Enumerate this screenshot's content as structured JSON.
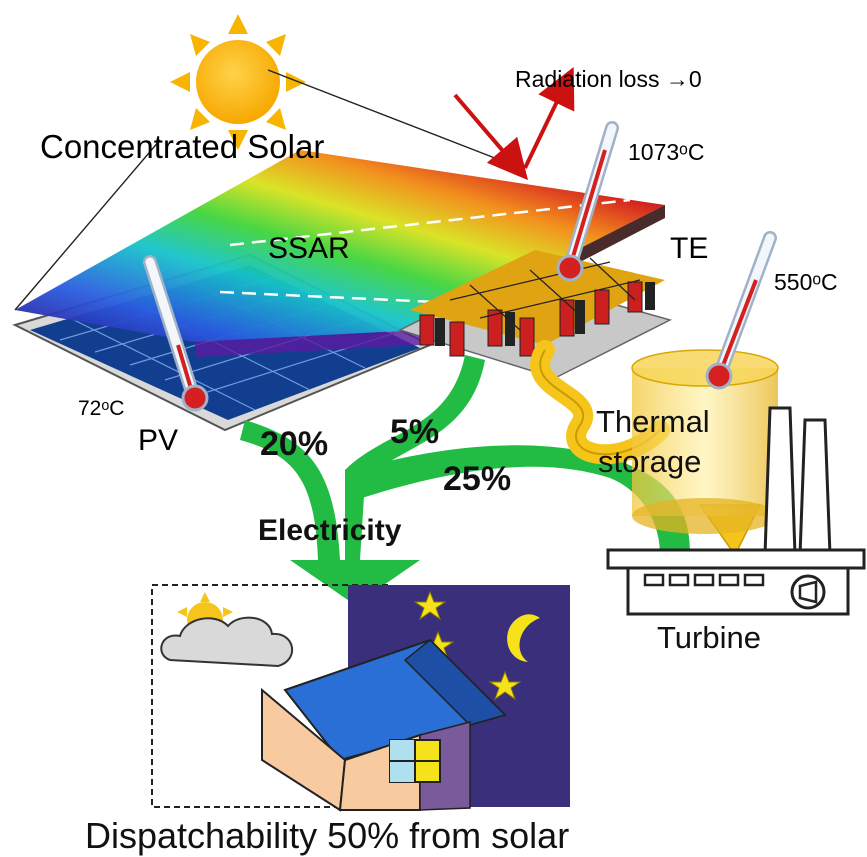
{
  "labels": {
    "radiation_loss": "Radiation loss →0",
    "concentrated_solar": "Concentrated Solar",
    "temp_top": "1073ᵒC",
    "ssar": "SSAR",
    "te": "TE",
    "temp_storage": "550ᵒC",
    "temp_pv": "72ᵒC",
    "pv": "PV",
    "pct_pv": "20%",
    "pct_te": "5%",
    "pct_turbine": "25%",
    "thermal": "Thermal",
    "storage": "storage",
    "electricity": "Electricity",
    "turbine": "Turbine",
    "dispatchability": "Dispatchability 50% from solar"
  },
  "colors": {
    "flow_green": "#22bb44",
    "heat_yellow": "#f5c51b",
    "night_sky": "#3a2f7a",
    "radiation_red": "#cc1111",
    "roof_blue": "#2a6fd6"
  }
}
